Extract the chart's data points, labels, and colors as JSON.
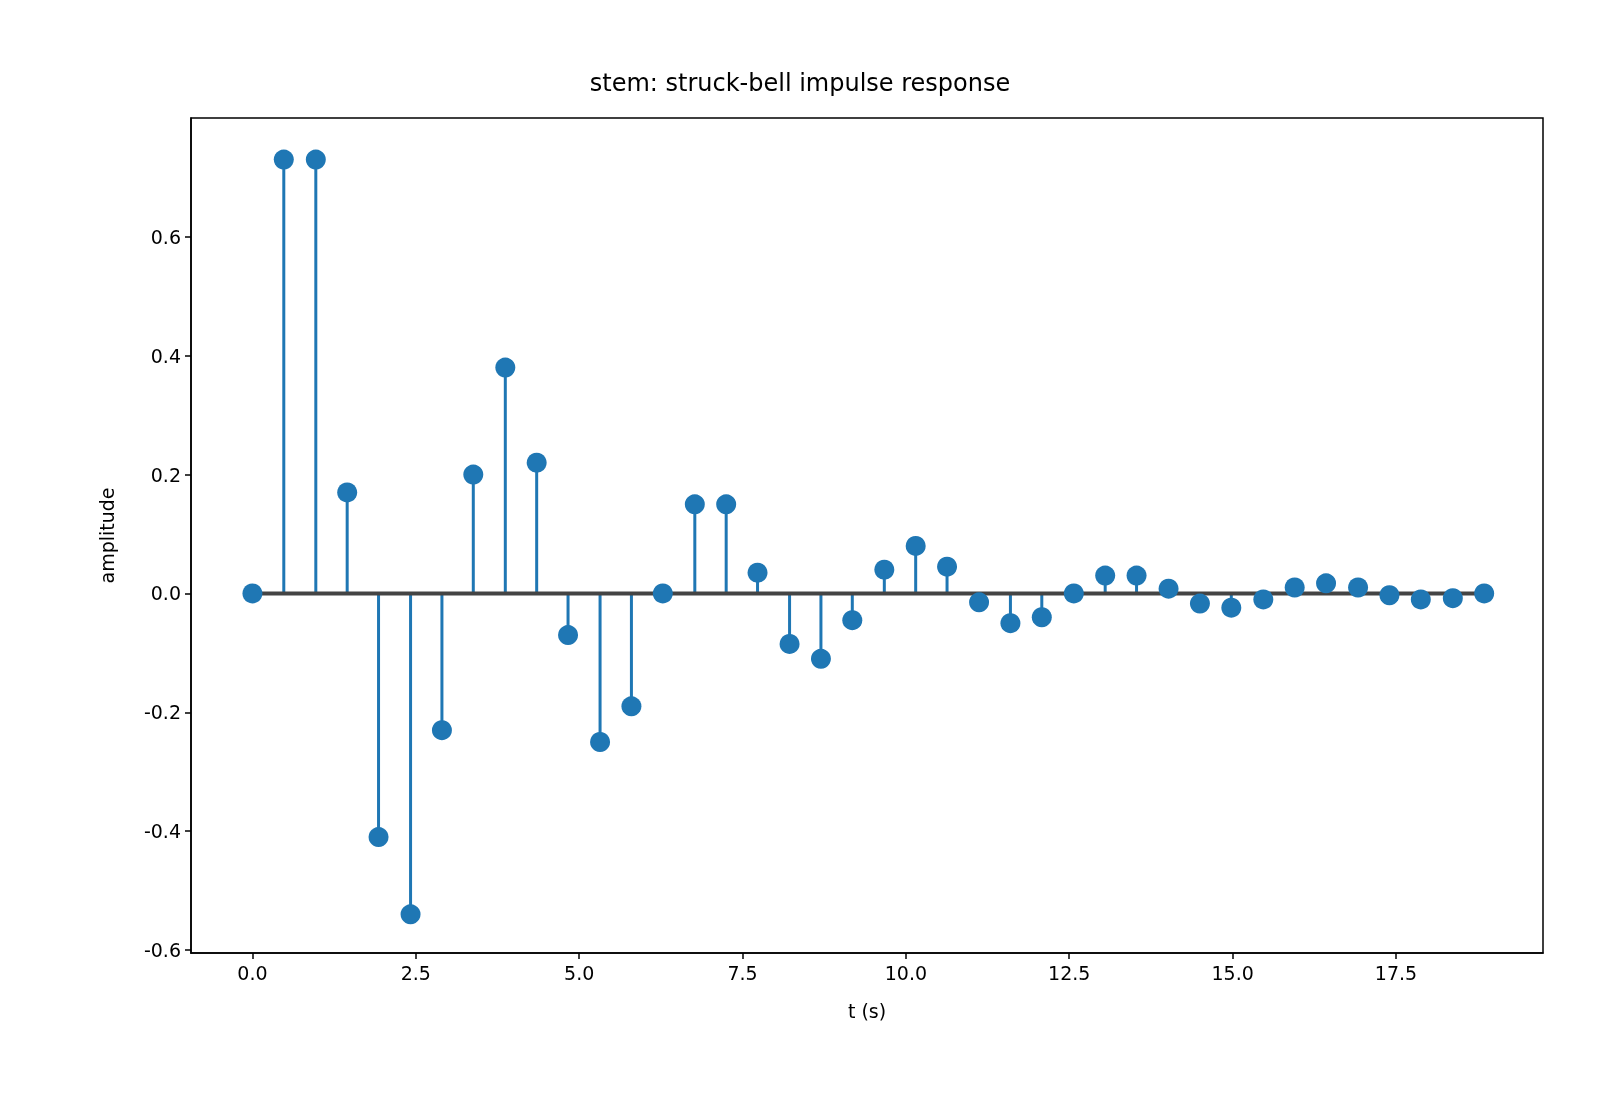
{
  "chart_data": {
    "type": "lollipop",
    "title": "stem: struck-bell impulse response",
    "xlabel": "t (s)",
    "ylabel": "amplitude",
    "x": [
      0,
      0.48,
      0.97,
      1.45,
      1.93,
      2.42,
      2.9,
      3.38,
      3.87,
      4.35,
      4.83,
      5.32,
      5.8,
      6.28,
      6.77,
      7.25,
      7.73,
      8.22,
      8.7,
      9.18,
      9.67,
      10.15,
      10.63,
      11.12,
      11.6,
      12.08,
      12.57,
      13.05,
      13.53,
      14.02,
      14.5,
      14.98,
      15.47,
      15.95,
      16.43,
      16.92,
      17.4,
      17.88,
      18.37,
      18.85
    ],
    "series": [
      {
        "color": "#1f77b4",
        "values": [
          0,
          0.73,
          0.73,
          0.17,
          -0.41,
          -0.54,
          -0.23,
          0.2,
          0.38,
          0.22,
          -0.07,
          -0.25,
          -0.19,
          0,
          0.15,
          0.15,
          0.035,
          -0.085,
          -0.11,
          -0.045,
          0.04,
          0.08,
          0.045,
          -0.015,
          -0.05,
          -0.04,
          0,
          0.03,
          0.03,
          0.008,
          -0.017,
          -0.024,
          -0.01,
          0.01,
          0.017,
          0.01,
          -0.003,
          -0.01,
          -0.008,
          0
        ]
      }
    ],
    "xlim": [
      -0.94,
      19.75
    ],
    "ylim": [
      -0.605,
      0.8
    ],
    "xticks": [
      {
        "value": 0,
        "label": "0.0"
      },
      {
        "value": 2.5,
        "label": "2.5"
      },
      {
        "value": 5,
        "label": "5.0"
      },
      {
        "value": 7.5,
        "label": "7.5"
      },
      {
        "value": 10,
        "label": "10.0"
      },
      {
        "value": 12.5,
        "label": "12.5"
      },
      {
        "value": 15,
        "label": "15.0"
      },
      {
        "value": 17.5,
        "label": "17.5"
      }
    ],
    "yticks": [
      {
        "value": -0.6,
        "label": "-0.6"
      },
      {
        "value": -0.4,
        "label": "-0.4"
      },
      {
        "value": -0.2,
        "label": "-0.2"
      },
      {
        "value": 0,
        "label": "0.0"
      },
      {
        "value": 0.2,
        "label": "0.2"
      },
      {
        "value": 0.4,
        "label": "0.4"
      },
      {
        "value": 0.6,
        "label": "0.6"
      }
    ],
    "ref_lines": [
      {
        "axis": "y",
        "value": 0,
        "color": "#444444"
      }
    ],
    "marker": "circle"
  }
}
